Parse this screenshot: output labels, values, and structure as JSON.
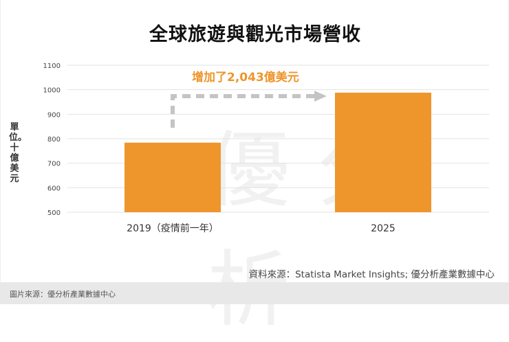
{
  "title": "全球旅遊與觀光市場營收",
  "watermark": "優分析",
  "chart_data": {
    "type": "bar",
    "title": "全球旅遊與觀光市場營收",
    "ylabel": "單位。十億美元",
    "xlabel": "",
    "categories": [
      "2019（疫情前一年）",
      "2025"
    ],
    "values": [
      784,
      988
    ],
    "ylim": [
      500,
      1100
    ],
    "yticks": [
      500,
      600,
      700,
      800,
      900,
      1000,
      1100
    ],
    "grid": true,
    "bar_color": "#ee952b",
    "annotation": {
      "text": "增加了2,043億美元",
      "color": "#ee952b",
      "arrow": "dashed gray arrow from 2019 bar to 2025 bar"
    }
  },
  "source": "資料來源：Statista Market Insights; 優分析產業數據中心",
  "footer": "圖片來源：優分析產業數據中心"
}
